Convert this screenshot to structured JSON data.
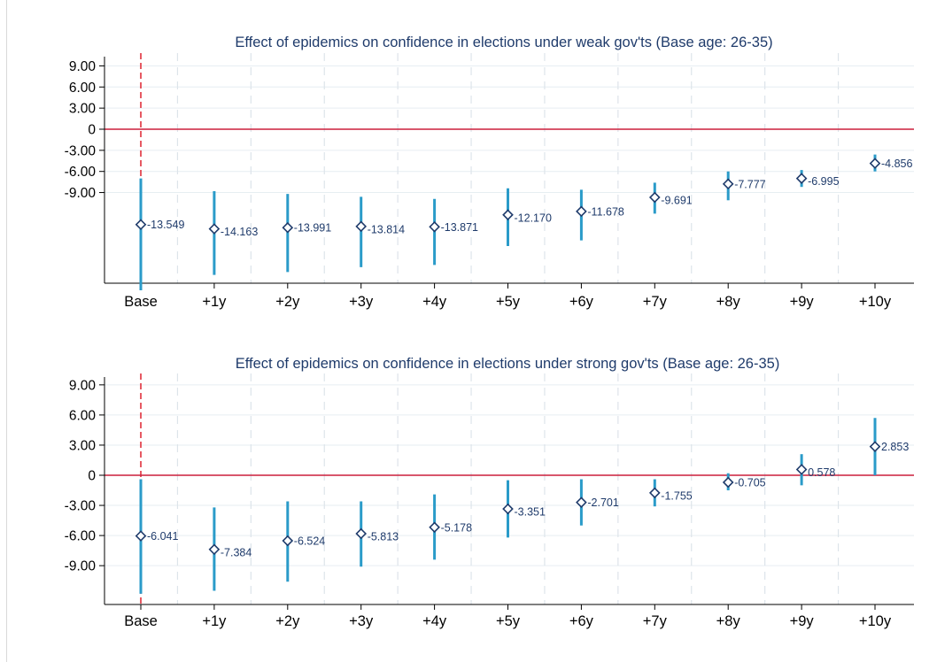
{
  "colors": {
    "ci_bar": "#2a9bc9",
    "marker_stroke": "#1f3b6b",
    "zero_line": "#cc1f3c",
    "base_line": "#e0303c",
    "grid_h": "#e6eef2",
    "grid_v": "#dde4ea",
    "title": "#1f3b6b",
    "label": "#1f3b6b"
  },
  "chart_data": [
    {
      "type": "scatter",
      "style": "coefficient plot with confidence-interval bars",
      "title": "Effect of epidemics on confidence in elections under weak gov'ts (Base age: 26-35)",
      "categories": [
        "Base",
        "+1y",
        "+2y",
        "+3y",
        "+4y",
        "+5y",
        "+6y",
        "+7y",
        "+8y",
        "+9y",
        "+10y"
      ],
      "values": [
        -13.549,
        -14.163,
        -13.991,
        -13.814,
        -13.871,
        -12.17,
        -11.678,
        -9.691,
        -7.777,
        -6.995,
        -4.856
      ],
      "value_labels": [
        "-13.549",
        "-14.163",
        "-13.991",
        "-13.814",
        "-13.871",
        "-12.170",
        "-11.678",
        "-9.691",
        "-7.777",
        "-6.995",
        "-4.856"
      ],
      "ci_low": [
        -22.9,
        -20.7,
        -20.3,
        -19.6,
        -19.3,
        -16.6,
        -15.8,
        -12.0,
        -10.1,
        -8.2,
        -6.0
      ],
      "ci_high": [
        -7.0,
        -8.8,
        -9.2,
        -9.6,
        -9.9,
        -8.4,
        -8.6,
        -7.6,
        -6.0,
        -5.8,
        -3.6
      ],
      "yticks": [
        "9.00",
        "6.00",
        "3.00",
        "0",
        "-3.00",
        "-6.00",
        "-9.00"
      ],
      "ylim": [
        -24.5,
        10.5
      ],
      "reference_lines": {
        "horizontal_at": 0,
        "vertical_at": "Base"
      },
      "grid": true
    },
    {
      "type": "scatter",
      "style": "coefficient plot with confidence-interval bars",
      "title": "Effect of epidemics on confidence in elections under strong gov'ts (Base age: 26-35)",
      "categories": [
        "Base",
        "+1y",
        "+2y",
        "+3y",
        "+4y",
        "+5y",
        "+6y",
        "+7y",
        "+8y",
        "+9y",
        "+10y"
      ],
      "values": [
        -6.041,
        -7.384,
        -6.524,
        -5.813,
        -5.178,
        -3.351,
        -2.701,
        -1.755,
        -0.705,
        0.578,
        2.853
      ],
      "value_labels": [
        "-6.041",
        "-7.384",
        "-6.524",
        "-5.813",
        "-5.178",
        "-3.351",
        "-2.701",
        "-1.755",
        "-0.705",
        "0.578",
        "2.853"
      ],
      "ci_low": [
        -11.8,
        -11.5,
        -10.6,
        -9.1,
        -8.4,
        -6.2,
        -5.0,
        -3.1,
        -1.5,
        -1.0,
        0.0
      ],
      "ci_high": [
        -0.4,
        -3.2,
        -2.6,
        -2.6,
        -1.9,
        -0.5,
        -0.4,
        -0.4,
        0.2,
        2.1,
        5.7
      ],
      "yticks": [
        "9.00",
        "6.00",
        "3.00",
        "0",
        "-3.00",
        "-6.00",
        "-9.00"
      ],
      "ylim": [
        -12.6,
        10.0
      ],
      "reference_lines": {
        "horizontal_at": 0,
        "vertical_at": "Base"
      },
      "grid": true
    }
  ]
}
